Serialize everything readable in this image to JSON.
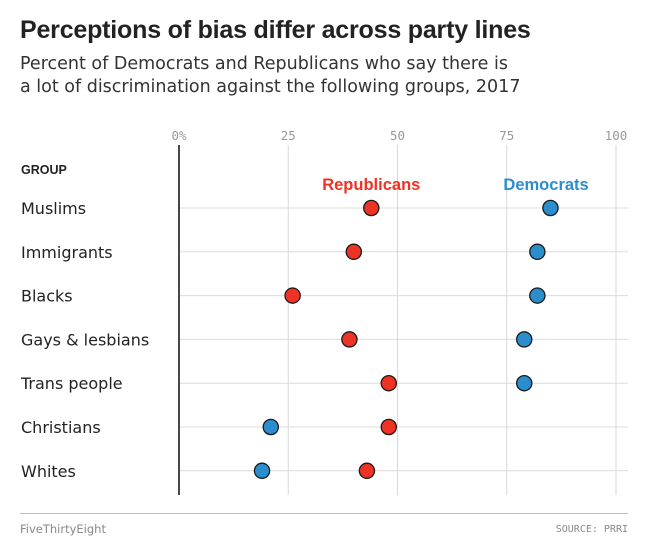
{
  "header": {
    "title": "Perceptions of bias differ across party lines",
    "subtitle_line1": "Percent of Democrats and Republicans who say there is",
    "subtitle_line2": "a lot of discrimination against the following groups, 2017"
  },
  "chart_data": {
    "type": "dot",
    "title": "Perceptions of bias differ across party lines",
    "group_header": "GROUP",
    "xlim": [
      0,
      100
    ],
    "ticks": [
      0,
      25,
      50,
      75,
      100
    ],
    "tick_labels": [
      "0%",
      "25",
      "50",
      "75",
      "100"
    ],
    "categories": [
      "Muslims",
      "Immigrants",
      "Blacks",
      "Gays & lesbians",
      "Trans people",
      "Christians",
      "Whites"
    ],
    "series": [
      {
        "name": "Republicans",
        "color": "#ee3224",
        "values": [
          44,
          40,
          26,
          39,
          48,
          48,
          43
        ]
      },
      {
        "name": "Democrats",
        "color": "#2a8ecd",
        "values": [
          85,
          82,
          82,
          79,
          79,
          21,
          19
        ]
      }
    ],
    "legend_labels": [
      {
        "name": "Republicans",
        "color": "#ee3224",
        "anchor_value": 44
      },
      {
        "name": "Democrats",
        "color": "#2a8ecd",
        "anchor_value": 84
      }
    ]
  },
  "footer": {
    "brand": "FiveThirtyEight",
    "source": "SOURCE: PRRI"
  }
}
